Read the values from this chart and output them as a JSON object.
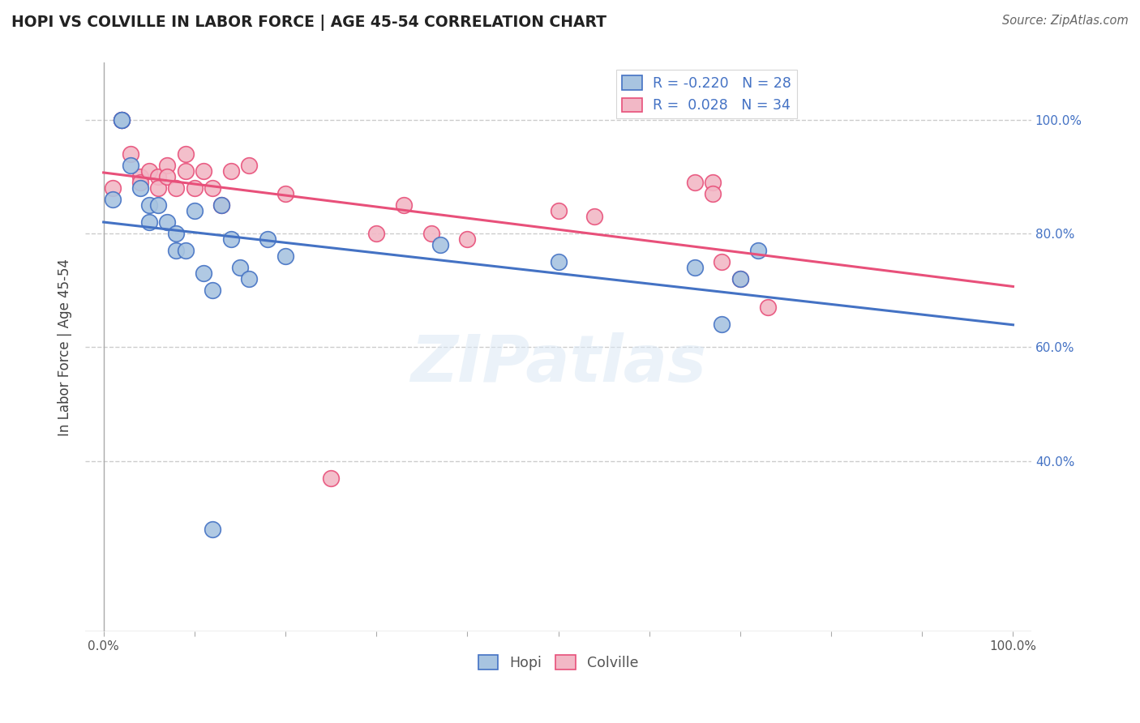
{
  "title": "HOPI VS COLVILLE IN LABOR FORCE | AGE 45-54 CORRELATION CHART",
  "source": "Source: ZipAtlas.com",
  "ylabel": "In Labor Force | Age 45-54",
  "xlim": [
    -0.02,
    1.02
  ],
  "ylim": [
    0.1,
    1.1
  ],
  "hopi_R": -0.22,
  "hopi_N": 28,
  "colville_R": 0.028,
  "colville_N": 34,
  "hopi_face_color": "#A8C4E0",
  "colville_face_color": "#F2B8C6",
  "hopi_edge_color": "#4472C4",
  "colville_edge_color": "#E8507A",
  "hopi_line_color": "#4472C4",
  "colville_line_color": "#E8507A",
  "grid_color": "#CCCCCC",
  "tick_color": "#4472C4",
  "hopi_x": [
    0.01,
    0.02,
    0.02,
    0.03,
    0.04,
    0.05,
    0.05,
    0.06,
    0.07,
    0.08,
    0.08,
    0.09,
    0.1,
    0.11,
    0.12,
    0.13,
    0.14,
    0.15,
    0.16,
    0.18,
    0.2,
    0.37,
    0.5,
    0.65,
    0.68,
    0.7,
    0.72,
    0.12
  ],
  "hopi_y": [
    0.86,
    1.0,
    1.0,
    0.92,
    0.88,
    0.85,
    0.82,
    0.85,
    0.82,
    0.8,
    0.77,
    0.77,
    0.84,
    0.73,
    0.7,
    0.85,
    0.79,
    0.74,
    0.72,
    0.79,
    0.76,
    0.78,
    0.75,
    0.74,
    0.64,
    0.72,
    0.77,
    0.28
  ],
  "colville_x": [
    0.01,
    0.02,
    0.02,
    0.03,
    0.04,
    0.04,
    0.05,
    0.06,
    0.06,
    0.07,
    0.07,
    0.08,
    0.09,
    0.09,
    0.1,
    0.11,
    0.12,
    0.13,
    0.14,
    0.16,
    0.2,
    0.3,
    0.33,
    0.36,
    0.4,
    0.5,
    0.54,
    0.65,
    0.67,
    0.67,
    0.68,
    0.7,
    0.73,
    0.25
  ],
  "colville_y": [
    0.88,
    1.0,
    1.0,
    0.94,
    0.9,
    0.89,
    0.91,
    0.9,
    0.88,
    0.92,
    0.9,
    0.88,
    0.94,
    0.91,
    0.88,
    0.91,
    0.88,
    0.85,
    0.91,
    0.92,
    0.87,
    0.8,
    0.85,
    0.8,
    0.79,
    0.84,
    0.83,
    0.89,
    0.89,
    0.87,
    0.75,
    0.72,
    0.67,
    0.37
  ],
  "ytick_vals": [
    0.4,
    0.6,
    0.8,
    1.0
  ],
  "ytick_labels": [
    "40.0%",
    "60.0%",
    "80.0%",
    "100.0%"
  ],
  "xtick_vals": [
    0.0,
    0.1,
    0.2,
    0.3,
    0.4,
    0.5,
    0.6,
    0.7,
    0.8,
    0.9,
    1.0
  ],
  "xtick_labels": [
    "0.0%",
    "",
    "",
    "",
    "",
    "",
    "",
    "",
    "",
    "",
    "100.0%"
  ]
}
